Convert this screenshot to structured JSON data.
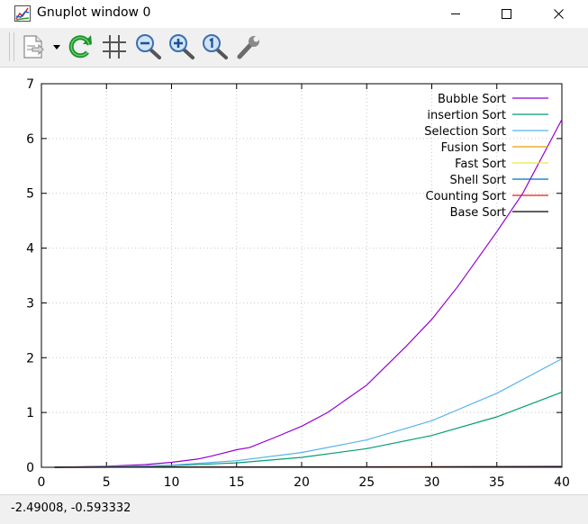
{
  "window": {
    "title": "Gnuplot window 0"
  },
  "toolbar": {
    "buttons": [
      {
        "name": "copy-to-clipboard-button",
        "icon": "clipboard-icon"
      },
      {
        "name": "options-dropdown-button",
        "icon": "dropdown-arrow-icon"
      },
      {
        "name": "replot-button",
        "icon": "refresh-icon"
      },
      {
        "name": "toggle-grid-button",
        "icon": "grid-icon"
      },
      {
        "name": "zoom-previous-button",
        "icon": "zoom-out-icon"
      },
      {
        "name": "zoom-next-button",
        "icon": "zoom-in-icon"
      },
      {
        "name": "autoscale-button",
        "icon": "zoom-reset-icon"
      },
      {
        "name": "settings-button",
        "icon": "wrench-icon"
      }
    ]
  },
  "status": {
    "coords": "-2.49008, -0.593332"
  },
  "colors": {
    "bubble": "#9400d3",
    "insertion": "#009e73",
    "selection": "#56b4e9",
    "fusion": "#e69f00",
    "fast": "#f0e442",
    "shell": "#0072b2",
    "counting": "#e51e10",
    "base": "#000000"
  },
  "chart_data": {
    "type": "line",
    "title": "",
    "xlabel": "",
    "ylabel": "",
    "xlim": [
      0,
      40
    ],
    "ylim": [
      0,
      7
    ],
    "xticks": [
      "0",
      "5",
      "10",
      "15",
      "20",
      "25",
      "30",
      "35",
      "40"
    ],
    "yticks": [
      "0",
      "1",
      "2",
      "3",
      "4",
      "5",
      "6",
      "7"
    ],
    "grid": true,
    "legend_position": "top-right",
    "series": [
      {
        "name": "Bubble Sort",
        "color": "#9400d3",
        "x": [
          1,
          5,
          8,
          10,
          12,
          13,
          15,
          16,
          18,
          20,
          22,
          25,
          28,
          30,
          32,
          35,
          37,
          40
        ],
        "y": [
          0.0,
          0.02,
          0.05,
          0.09,
          0.15,
          0.2,
          0.32,
          0.36,
          0.55,
          0.75,
          1.0,
          1.5,
          2.2,
          2.7,
          3.3,
          4.3,
          5.0,
          6.35
        ]
      },
      {
        "name": "insertion Sort",
        "color": "#009e73",
        "x": [
          1,
          5,
          10,
          15,
          20,
          25,
          30,
          35,
          40
        ],
        "y": [
          0.0,
          0.01,
          0.03,
          0.08,
          0.18,
          0.34,
          0.58,
          0.92,
          1.37
        ]
      },
      {
        "name": "Selection Sort",
        "color": "#56b4e9",
        "x": [
          1,
          5,
          10,
          15,
          20,
          25,
          30,
          35,
          40
        ],
        "y": [
          0.0,
          0.01,
          0.04,
          0.12,
          0.27,
          0.5,
          0.85,
          1.35,
          1.98
        ]
      },
      {
        "name": "Fusion Sort",
        "color": "#e69f00",
        "x": [
          1,
          10,
          20,
          30,
          40
        ],
        "y": [
          0.0,
          0.003,
          0.006,
          0.009,
          0.012
        ]
      },
      {
        "name": "Fast Sort",
        "color": "#f0e442",
        "x": [
          1,
          10,
          20,
          30,
          40
        ],
        "y": [
          0.0,
          0.002,
          0.004,
          0.006,
          0.008
        ]
      },
      {
        "name": "Shell Sort",
        "color": "#0072b2",
        "x": [
          1,
          10,
          20,
          30,
          40
        ],
        "y": [
          0.0,
          0.004,
          0.008,
          0.012,
          0.018
        ]
      },
      {
        "name": "Counting Sort",
        "color": "#e51e10",
        "x": [
          1,
          10,
          20,
          30,
          40
        ],
        "y": [
          0.0,
          0.002,
          0.004,
          0.006,
          0.008
        ]
      },
      {
        "name": "Base Sort",
        "color": "#000000",
        "x": [
          1,
          10,
          20,
          30,
          40
        ],
        "y": [
          0.0,
          0.001,
          0.002,
          0.003,
          0.004
        ]
      }
    ]
  }
}
